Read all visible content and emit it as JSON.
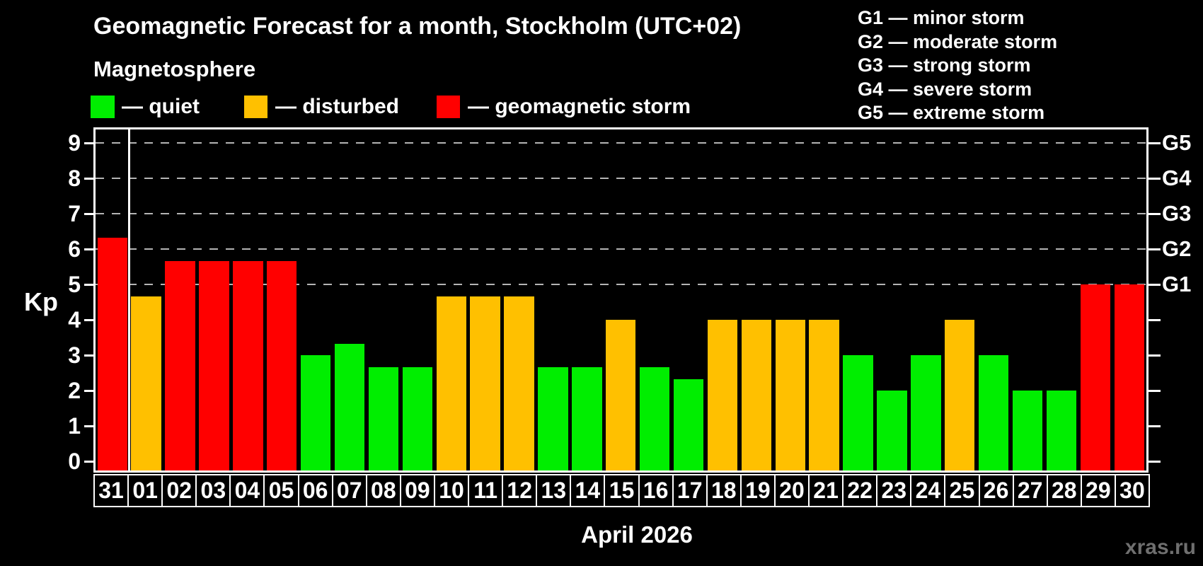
{
  "title": "Geomagnetic Forecast for a month, Stockholm (UTC+02)",
  "subtitle": "Magnetosphere",
  "legend": {
    "quiet": "— quiet",
    "disturbed": "— disturbed",
    "storm": "— geomagnetic storm"
  },
  "storm_scale_legend": [
    "G1 — minor storm",
    "G2 — moderate storm",
    "G3 — strong storm",
    "G4 — severe storm",
    "G5 — extreme storm"
  ],
  "axis": {
    "kp_label": "Kp",
    "left_ticks": [
      "0",
      "1",
      "2",
      "3",
      "4",
      "5",
      "6",
      "7",
      "8",
      "9"
    ],
    "right_labels": [
      {
        "label": "G1",
        "kp": 5
      },
      {
        "label": "G2",
        "kp": 6
      },
      {
        "label": "G3",
        "kp": 7
      },
      {
        "label": "G4",
        "kp": 8
      },
      {
        "label": "G5",
        "kp": 9
      }
    ],
    "x_label": "April 2026"
  },
  "watermark": "xras.ru",
  "colors": {
    "quiet": "#00ee00",
    "disturbed": "#ffc000",
    "storm": "#ff0000",
    "background": "#000000",
    "grid": "#b4b4b4",
    "axis": "#ffffff",
    "watermark": "#6f6f6f"
  },
  "chart_data": {
    "type": "bar",
    "title": "Geomagnetic Forecast for a month, Stockholm (UTC+02)",
    "xlabel": "April 2026",
    "ylabel": "Kp",
    "ylim": [
      0,
      9.5
    ],
    "grid": "horizontal dashed lines at Kp 5,6,7,8,9 aligned with G1–G5",
    "legend_position": "top-left",
    "color_encoding": "quiet=green, disturbed=orange, geomagnetic storm=red",
    "days": [
      {
        "label": "31",
        "kp": 6.33,
        "state": "storm"
      },
      {
        "label": "01",
        "kp": 4.67,
        "state": "disturbed"
      },
      {
        "label": "02",
        "kp": 5.67,
        "state": "storm"
      },
      {
        "label": "03",
        "kp": 5.67,
        "state": "storm"
      },
      {
        "label": "04",
        "kp": 5.67,
        "state": "storm"
      },
      {
        "label": "05",
        "kp": 5.67,
        "state": "storm"
      },
      {
        "label": "06",
        "kp": 3.0,
        "state": "quiet"
      },
      {
        "label": "07",
        "kp": 3.33,
        "state": "quiet"
      },
      {
        "label": "08",
        "kp": 2.67,
        "state": "quiet"
      },
      {
        "label": "09",
        "kp": 2.67,
        "state": "quiet"
      },
      {
        "label": "10",
        "kp": 4.67,
        "state": "disturbed"
      },
      {
        "label": "11",
        "kp": 4.67,
        "state": "disturbed"
      },
      {
        "label": "12",
        "kp": 4.67,
        "state": "disturbed"
      },
      {
        "label": "13",
        "kp": 2.67,
        "state": "quiet"
      },
      {
        "label": "14",
        "kp": 2.67,
        "state": "quiet"
      },
      {
        "label": "15",
        "kp": 4.0,
        "state": "disturbed"
      },
      {
        "label": "16",
        "kp": 2.67,
        "state": "quiet"
      },
      {
        "label": "17",
        "kp": 2.33,
        "state": "quiet"
      },
      {
        "label": "18",
        "kp": 4.0,
        "state": "disturbed"
      },
      {
        "label": "19",
        "kp": 4.0,
        "state": "disturbed"
      },
      {
        "label": "20",
        "kp": 4.0,
        "state": "disturbed"
      },
      {
        "label": "21",
        "kp": 4.0,
        "state": "disturbed"
      },
      {
        "label": "22",
        "kp": 3.0,
        "state": "quiet"
      },
      {
        "label": "23",
        "kp": 2.0,
        "state": "quiet"
      },
      {
        "label": "24",
        "kp": 3.0,
        "state": "quiet"
      },
      {
        "label": "25",
        "kp": 4.0,
        "state": "disturbed"
      },
      {
        "label": "26",
        "kp": 3.0,
        "state": "quiet"
      },
      {
        "label": "27",
        "kp": 2.0,
        "state": "quiet"
      },
      {
        "label": "28",
        "kp": 2.0,
        "state": "quiet"
      },
      {
        "label": "29",
        "kp": 5.0,
        "state": "storm"
      },
      {
        "label": "30",
        "kp": 5.0,
        "state": "storm"
      }
    ]
  }
}
